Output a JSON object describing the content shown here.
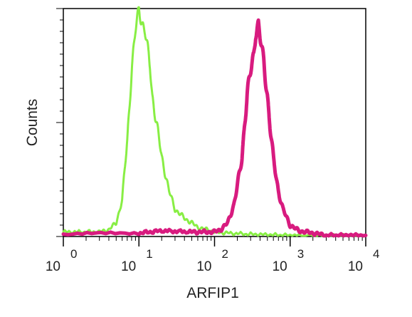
{
  "chart_data": {
    "type": "line",
    "title": "",
    "xlabel": "ARFIP1",
    "ylabel": "Counts",
    "x_scale": "log",
    "xlim": [
      1,
      10000
    ],
    "ylim": [
      0,
      100
    ],
    "grid": false,
    "legend": "none",
    "x_tick_labels": [
      {
        "base": "10",
        "exp": "0"
      },
      {
        "base": "10",
        "exp": "1"
      },
      {
        "base": "10",
        "exp": "2"
      },
      {
        "base": "10",
        "exp": "3"
      },
      {
        "base": "10",
        "exp": "4"
      }
    ],
    "series": [
      {
        "color": "#88ee44",
        "x": [
          1,
          2,
          3,
          4,
          5,
          6,
          7,
          8,
          9,
          10,
          11,
          12,
          13,
          14,
          15,
          17,
          20,
          25,
          30,
          40,
          50,
          60,
          80,
          100,
          150,
          300,
          1000,
          3000,
          10000
        ],
        "y": [
          2,
          2,
          2,
          3,
          6,
          16,
          42,
          73,
          90,
          100,
          94,
          90,
          82,
          75,
          62,
          50,
          35,
          20,
          12,
          8,
          6,
          4,
          3,
          2,
          1.5,
          1,
          0.5,
          0.3,
          0.3
        ]
      },
      {
        "color": "#d81b7f",
        "x": [
          1,
          10,
          20,
          50,
          80,
          100,
          120,
          150,
          180,
          200,
          230,
          250,
          270,
          300,
          330,
          350,
          380,
          400,
          450,
          500,
          550,
          600,
          700,
          800,
          1000,
          1300,
          1600,
          2000,
          3000,
          10000
        ],
        "y": [
          0.7,
          1.5,
          2.5,
          2,
          2,
          2,
          3,
          6,
          14,
          22,
          34,
          50,
          62,
          72,
          80,
          90,
          93,
          87,
          76,
          62,
          46,
          34,
          20,
          12,
          5,
          2.5,
          2,
          1.5,
          0.5,
          0.5
        ]
      }
    ]
  }
}
